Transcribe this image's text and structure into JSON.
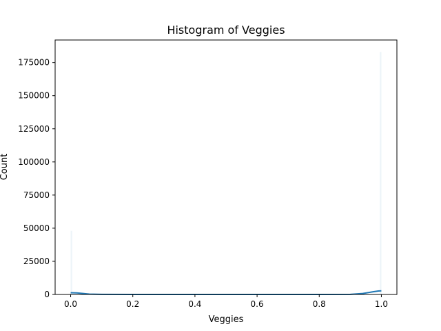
{
  "chart_data": {
    "type": "bar",
    "title": "Histogram of Veggies",
    "xlabel": "Veggies",
    "ylabel": "Count",
    "xlim": [
      -0.05,
      1.05
    ],
    "ylim": [
      0,
      192000
    ],
    "xticks": [
      0.0,
      0.2,
      0.4,
      0.6,
      0.8,
      1.0
    ],
    "xtick_labels": [
      "0.0",
      "0.2",
      "0.4",
      "0.6",
      "0.8",
      "1.0"
    ],
    "yticks": [
      0,
      25000,
      50000,
      75000,
      100000,
      125000,
      150000,
      175000
    ],
    "ytick_labels": [
      "0",
      "25000",
      "50000",
      "75000",
      "100000",
      "125000",
      "150000",
      "175000"
    ],
    "grid": false,
    "bar_color": "#1f77b4",
    "kde_color": "#1f77b4",
    "bins": [
      {
        "x0": 0.0,
        "x1": 0.005,
        "count": 48000
      },
      {
        "x0": 0.995,
        "x1": 1.0,
        "count": 183000
      }
    ],
    "kde": {
      "x": [
        0.0,
        0.02,
        0.04,
        0.06,
        0.1,
        0.2,
        0.5,
        0.8,
        0.9,
        0.94,
        0.97,
        0.99,
        1.0
      ],
      "y": [
        1300,
        1150,
        700,
        250,
        40,
        0,
        0,
        0,
        40,
        700,
        1900,
        2600,
        2700
      ]
    }
  }
}
